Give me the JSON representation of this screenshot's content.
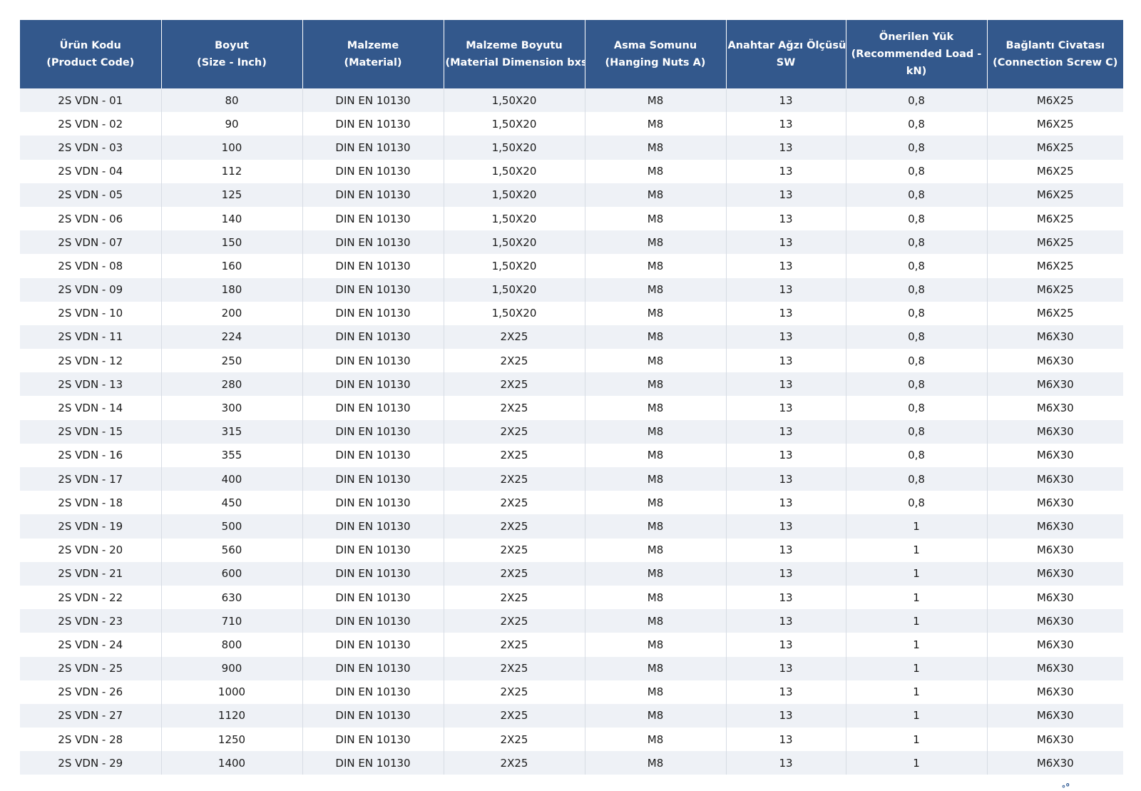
{
  "table": {
    "columns": [
      {
        "line1": "Ürün Kodu",
        "line2": "(Product Code)"
      },
      {
        "line1": "Boyut",
        "line2": "(Size - Inch)"
      },
      {
        "line1": "Malzeme",
        "line2": "(Material)"
      },
      {
        "line1": "Malzeme Boyutu",
        "line2": "(Material Dimension bxs)"
      },
      {
        "line1": "Asma Somunu",
        "line2": "(Hanging Nuts A)"
      },
      {
        "line1": "Anahtar Ağzı Ölçüsü",
        "line2": "SW"
      },
      {
        "line1": "Önerilen Yük",
        "line2": "(Recommended Load -",
        "line3": "kN)"
      },
      {
        "line1": "Bağlantı Civatası",
        "line2": "(Connection Screw C)"
      }
    ],
    "rows": [
      [
        "2S VDN - 01",
        "80",
        "DIN EN 10130",
        "1,50X20",
        "M8",
        "13",
        "0,8",
        "M6X25"
      ],
      [
        "2S VDN - 02",
        "90",
        "DIN EN 10130",
        "1,50X20",
        "M8",
        "13",
        "0,8",
        "M6X25"
      ],
      [
        "2S VDN - 03",
        "100",
        "DIN EN 10130",
        "1,50X20",
        "M8",
        "13",
        "0,8",
        "M6X25"
      ],
      [
        "2S VDN - 04",
        "112",
        "DIN EN 10130",
        "1,50X20",
        "M8",
        "13",
        "0,8",
        "M6X25"
      ],
      [
        "2S VDN - 05",
        "125",
        "DIN EN 10130",
        "1,50X20",
        "M8",
        "13",
        "0,8",
        "M6X25"
      ],
      [
        "2S VDN - 06",
        "140",
        "DIN EN 10130",
        "1,50X20",
        "M8",
        "13",
        "0,8",
        "M6X25"
      ],
      [
        "2S VDN - 07",
        "150",
        "DIN EN 10130",
        "1,50X20",
        "M8",
        "13",
        "0,8",
        "M6X25"
      ],
      [
        "2S VDN - 08",
        "160",
        "DIN EN 10130",
        "1,50X20",
        "M8",
        "13",
        "0,8",
        "M6X25"
      ],
      [
        "2S VDN - 09",
        "180",
        "DIN EN 10130",
        "1,50X20",
        "M8",
        "13",
        "0,8",
        "M6X25"
      ],
      [
        "2S VDN - 10",
        "200",
        "DIN EN 10130",
        "1,50X20",
        "M8",
        "13",
        "0,8",
        "M6X25"
      ],
      [
        "2S VDN - 11",
        "224",
        "DIN EN 10130",
        "2X25",
        "M8",
        "13",
        "0,8",
        "M6X30"
      ],
      [
        "2S VDN - 12",
        "250",
        "DIN EN 10130",
        "2X25",
        "M8",
        "13",
        "0,8",
        "M6X30"
      ],
      [
        "2S VDN - 13",
        "280",
        "DIN EN 10130",
        "2X25",
        "M8",
        "13",
        "0,8",
        "M6X30"
      ],
      [
        "2S VDN - 14",
        "300",
        "DIN EN 10130",
        "2X25",
        "M8",
        "13",
        "0,8",
        "M6X30"
      ],
      [
        "2S VDN - 15",
        "315",
        "DIN EN 10130",
        "2X25",
        "M8",
        "13",
        "0,8",
        "M6X30"
      ],
      [
        "2S VDN - 16",
        "355",
        "DIN EN 10130",
        "2X25",
        "M8",
        "13",
        "0,8",
        "M6X30"
      ],
      [
        "2S VDN - 17",
        "400",
        "DIN EN 10130",
        "2X25",
        "M8",
        "13",
        "0,8",
        "M6X30"
      ],
      [
        "2S VDN - 18",
        "450",
        "DIN EN 10130",
        "2X25",
        "M8",
        "13",
        "0,8",
        "M6X30"
      ],
      [
        "2S VDN - 19",
        "500",
        "DIN EN 10130",
        "2X25",
        "M8",
        "13",
        "1",
        "M6X30"
      ],
      [
        "2S VDN - 20",
        "560",
        "DIN EN 10130",
        "2X25",
        "M8",
        "13",
        "1",
        "M6X30"
      ],
      [
        "2S VDN - 21",
        "600",
        "DIN EN 10130",
        "2X25",
        "M8",
        "13",
        "1",
        "M6X30"
      ],
      [
        "2S VDN - 22",
        "630",
        "DIN EN 10130",
        "2X25",
        "M8",
        "13",
        "1",
        "M6X30"
      ],
      [
        "2S VDN - 23",
        "710",
        "DIN EN 10130",
        "2X25",
        "M8",
        "13",
        "1",
        "M6X30"
      ],
      [
        "2S VDN - 24",
        "800",
        "DIN EN 10130",
        "2X25",
        "M8",
        "13",
        "1",
        "M6X30"
      ],
      [
        "2S VDN - 25",
        "900",
        "DIN EN 10130",
        "2X25",
        "M8",
        "13",
        "1",
        "M6X30"
      ],
      [
        "2S VDN - 26",
        "1000",
        "DIN EN 10130",
        "2X25",
        "M8",
        "13",
        "1",
        "M6X30"
      ],
      [
        "2S VDN - 27",
        "1120",
        "DIN EN 10130",
        "2X25",
        "M8",
        "13",
        "1",
        "M6X30"
      ],
      [
        "2S VDN - 28",
        "1250",
        "DIN EN 10130",
        "2X25",
        "M8",
        "13",
        "1",
        "M6X30"
      ],
      [
        "2S VDN - 29",
        "1400",
        "DIN EN 10130",
        "2X25",
        "M8",
        "13",
        "1",
        "M6X30"
      ]
    ]
  },
  "colors": {
    "header_bg": "#33588c",
    "header_text": "#ffffff",
    "row_alt_bg": "#eef1f6"
  }
}
